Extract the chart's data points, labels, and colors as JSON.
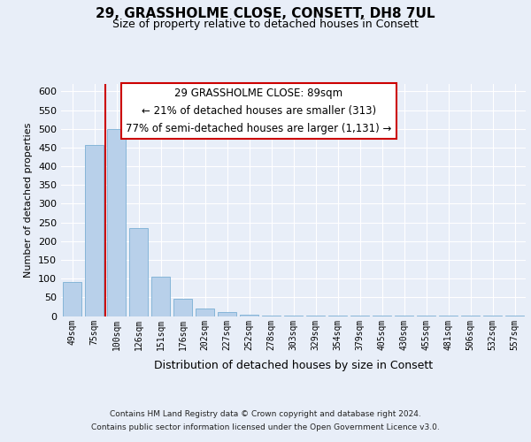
{
  "title_line1": "29, GRASSHOLME CLOSE, CONSETT, DH8 7UL",
  "title_line2": "Size of property relative to detached houses in Consett",
  "xlabel": "Distribution of detached houses by size in Consett",
  "ylabel": "Number of detached properties",
  "bin_labels": [
    "49sqm",
    "75sqm",
    "100sqm",
    "126sqm",
    "151sqm",
    "176sqm",
    "202sqm",
    "227sqm",
    "252sqm",
    "278sqm",
    "303sqm",
    "329sqm",
    "354sqm",
    "379sqm",
    "405sqm",
    "430sqm",
    "455sqm",
    "481sqm",
    "506sqm",
    "532sqm",
    "557sqm"
  ],
  "bar_values": [
    90,
    456,
    500,
    236,
    105,
    45,
    20,
    10,
    3,
    2,
    1,
    1,
    1,
    1,
    1,
    1,
    1,
    1,
    1,
    1,
    1
  ],
  "bar_color": "#b8d0ea",
  "bar_edge_color": "#7aafd4",
  "ylim": [
    0,
    620
  ],
  "yticks": [
    0,
    50,
    100,
    150,
    200,
    250,
    300,
    350,
    400,
    450,
    500,
    550,
    600
  ],
  "property_line_color": "#cc0000",
  "property_line_x": 1.5,
  "annotation_title": "29 GRASSHOLME CLOSE: 89sqm",
  "annotation_line1": "← 21% of detached houses are smaller (313)",
  "annotation_line2": "77% of semi-detached houses are larger (1,131) →",
  "annotation_box_facecolor": "#ffffff",
  "annotation_box_edgecolor": "#cc0000",
  "footer_line1": "Contains HM Land Registry data © Crown copyright and database right 2024.",
  "footer_line2": "Contains public sector information licensed under the Open Government Licence v3.0.",
  "background_color": "#e8eef8",
  "grid_color": "#ffffff",
  "title_fontsize": 11,
  "subtitle_fontsize": 9,
  "ylabel_fontsize": 8,
  "xlabel_fontsize": 9,
  "tick_fontsize": 7,
  "ytick_fontsize": 8,
  "footer_fontsize": 6.5,
  "ann_fontsize": 8.5
}
